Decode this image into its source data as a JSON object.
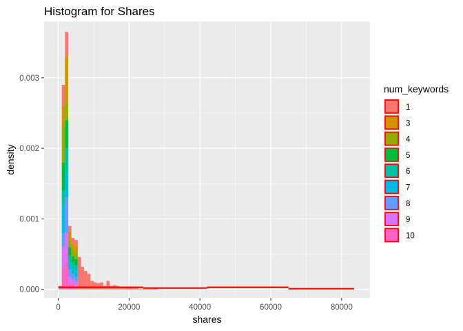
{
  "chart_data": {
    "type": "histogram",
    "title": "Histogram for Shares",
    "xlabel": "shares",
    "ylabel": "density",
    "xlim": [
      -4000,
      88000
    ],
    "ylim": [
      -0.00012,
      0.0038
    ],
    "x_ticks": [
      0,
      20000,
      40000,
      60000,
      80000
    ],
    "x_tick_labels": [
      "0",
      "20000",
      "40000",
      "60000",
      "80000"
    ],
    "y_ticks": [
      0.0,
      0.001,
      0.002,
      0.003
    ],
    "y_tick_labels": [
      "0.000",
      "0.001",
      "0.002",
      "0.003"
    ],
    "grid": true,
    "legend": {
      "title": "num_keywords",
      "placement": "right",
      "entries": [
        "1",
        "3",
        "4",
        "5",
        "6",
        "7",
        "8",
        "9",
        "10"
      ]
    },
    "bin_width": 900,
    "bar_outline_color": "#ff0000",
    "colors": [
      "#F8766D",
      "#D39200",
      "#93AA00",
      "#00BA38",
      "#00C19F",
      "#00B9E3",
      "#619CFF",
      "#DB72FB",
      "#FF61C3"
    ],
    "bins_start": [
      100,
      1000,
      1900,
      2800,
      3700,
      4600,
      5500,
      6400,
      7300,
      8200,
      9100,
      10000,
      10900,
      11800,
      12700,
      13600,
      14500,
      15400,
      16300,
      17200,
      18100,
      19000,
      19900,
      20800,
      21700,
      22600,
      23500,
      24400,
      25300,
      26200,
      27100
    ],
    "stack_tops": [
      5e-05,
      0.0029,
      0.00365,
      0.0009,
      0.00073,
      0.0007,
      0.00046,
      0.00032,
      0.00026,
      0.00022,
      0.00012,
      0.0001,
      9e-05,
      0.0001,
      5e-05,
      0.00012,
      5e-05,
      6e-05,
      5e-05,
      4e-05,
      3e-05,
      3e-05,
      2e-05,
      2e-05,
      3e-05,
      1e-05,
      1e-05,
      1e-05,
      2e-05,
      1e-05,
      3e-05
    ],
    "stack_boundaries": [
      [
        4e-05,
        3e-05,
        2e-05,
        1e-05
      ],
      [
        0.0026,
        0.0023,
        0.0018,
        0.0014,
        0.0012,
        0.0008,
        0.0006,
        0.0003
      ],
      [
        0.0033,
        0.00265,
        0.0024,
        0.002,
        0.00165,
        0.0013,
        0.0008,
        0.0004
      ],
      [
        0.00082,
        0.0007,
        0.0006,
        0.00048,
        0.00038,
        0.00028,
        0.00018,
        9e-05
      ],
      [
        0.00065,
        0.00056,
        0.00047,
        0.00038,
        0.0003,
        0.00022,
        0.00014,
        7e-05
      ],
      [
        0.00062,
        0.00052,
        0.00043,
        0.00034,
        0.00026,
        0.00018,
        0.00011,
        5e-05
      ]
    ],
    "segments": [
      {
        "from": 0,
        "to": 24000,
        "value": 3e-05
      },
      {
        "from": 24000,
        "to": 42000,
        "value": 2e-05
      },
      {
        "from": 42000,
        "to": 65000,
        "value": 3e-05
      },
      {
        "from": 65000,
        "to": 83500,
        "value": 1e-05
      }
    ]
  }
}
